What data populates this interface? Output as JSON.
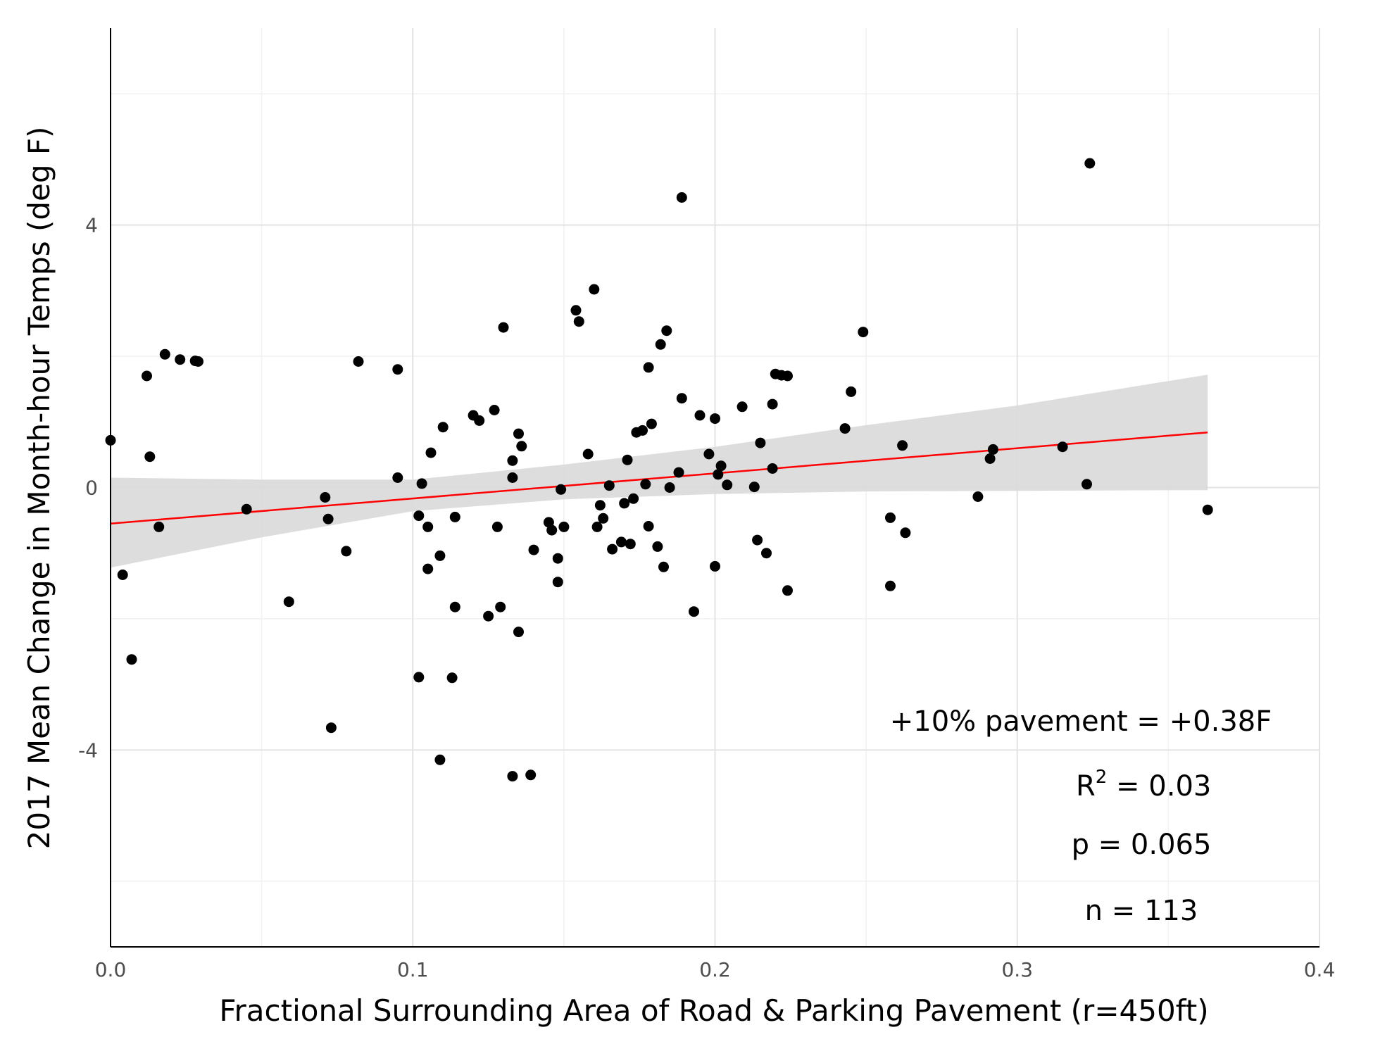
{
  "chart_data": {
    "type": "scatter",
    "title": "",
    "xlabel": "Fractional Surrounding Area of Road & Parking Pavement (r=450ft)",
    "ylabel": "2017 Mean Change in Month-hour Temps (deg F)",
    "xlim": [
      0.0,
      0.4
    ],
    "ylim": [
      -7,
      7
    ],
    "x_ticks": [
      0.0,
      0.1,
      0.2,
      0.3,
      0.4
    ],
    "x_tick_labels": [
      "0.0",
      "0.1",
      "0.2",
      "0.3",
      "0.4"
    ],
    "y_ticks": [
      -4,
      0,
      4
    ],
    "y_tick_labels": [
      "-4",
      "0",
      "4"
    ],
    "grid": true,
    "point_color": "#000000",
    "fit_line_color": "#ff0000",
    "confidence_band_color": "#d9d9d9",
    "fit_line": {
      "x": [
        0.0,
        0.363
      ],
      "y": [
        -0.55,
        0.84
      ]
    },
    "confidence_band": {
      "x": [
        0.0,
        0.05,
        0.1,
        0.15,
        0.2,
        0.25,
        0.3,
        0.363
      ],
      "upper": [
        0.15,
        0.12,
        0.12,
        0.35,
        0.62,
        0.95,
        1.25,
        1.72
      ],
      "lower": [
        -1.22,
        -0.76,
        -0.36,
        -0.18,
        -0.1,
        -0.06,
        -0.05,
        -0.04
      ]
    },
    "annotations": {
      "slope_text": "+10% pavement = +0.38F",
      "r2_prefix": "R",
      "r2_superscript": "2",
      "r2_suffix": " = 0.03",
      "p_text": "p = 0.065",
      "n_text": "n = 113"
    },
    "points": [
      [
        0.0,
        0.72
      ],
      [
        0.004,
        -1.33
      ],
      [
        0.007,
        -2.62
      ],
      [
        0.012,
        1.7
      ],
      [
        0.013,
        0.47
      ],
      [
        0.016,
        -0.6
      ],
      [
        0.018,
        2.03
      ],
      [
        0.023,
        1.95
      ],
      [
        0.028,
        1.93
      ],
      [
        0.029,
        1.92
      ],
      [
        0.045,
        -0.33
      ],
      [
        0.059,
        -1.74
      ],
      [
        0.071,
        -0.15
      ],
      [
        0.072,
        -0.48
      ],
      [
        0.073,
        -3.66
      ],
      [
        0.078,
        -0.97
      ],
      [
        0.082,
        1.92
      ],
      [
        0.095,
        1.8
      ],
      [
        0.095,
        0.15
      ],
      [
        0.102,
        -0.43
      ],
      [
        0.102,
        -2.89
      ],
      [
        0.103,
        0.06
      ],
      [
        0.105,
        -1.24
      ],
      [
        0.105,
        -0.6
      ],
      [
        0.106,
        0.53
      ],
      [
        0.109,
        -1.04
      ],
      [
        0.109,
        -4.15
      ],
      [
        0.11,
        0.92
      ],
      [
        0.113,
        -2.9
      ],
      [
        0.114,
        -1.82
      ],
      [
        0.114,
        -0.45
      ],
      [
        0.12,
        1.1
      ],
      [
        0.122,
        1.02
      ],
      [
        0.125,
        -1.96
      ],
      [
        0.127,
        1.18
      ],
      [
        0.128,
        -0.6
      ],
      [
        0.129,
        -1.82
      ],
      [
        0.13,
        2.44
      ],
      [
        0.133,
        0.41
      ],
      [
        0.133,
        0.15
      ],
      [
        0.133,
        -4.4
      ],
      [
        0.135,
        0.82
      ],
      [
        0.135,
        -2.2
      ],
      [
        0.136,
        0.63
      ],
      [
        0.139,
        -4.38
      ],
      [
        0.14,
        -0.95
      ],
      [
        0.145,
        -0.53
      ],
      [
        0.146,
        -0.65
      ],
      [
        0.148,
        -1.08
      ],
      [
        0.148,
        -1.44
      ],
      [
        0.149,
        -0.03
      ],
      [
        0.15,
        -0.6
      ],
      [
        0.154,
        2.7
      ],
      [
        0.155,
        2.53
      ],
      [
        0.158,
        0.51
      ],
      [
        0.16,
        3.02
      ],
      [
        0.161,
        -0.6
      ],
      [
        0.162,
        -0.27
      ],
      [
        0.163,
        -0.47
      ],
      [
        0.165,
        0.03
      ],
      [
        0.166,
        -0.94
      ],
      [
        0.169,
        -0.83
      ],
      [
        0.17,
        -0.24
      ],
      [
        0.171,
        0.42
      ],
      [
        0.172,
        -0.86
      ],
      [
        0.173,
        -0.17
      ],
      [
        0.174,
        0.84
      ],
      [
        0.176,
        0.87
      ],
      [
        0.177,
        0.05
      ],
      [
        0.178,
        -0.59
      ],
      [
        0.178,
        1.83
      ],
      [
        0.179,
        0.97
      ],
      [
        0.181,
        -0.9
      ],
      [
        0.182,
        2.18
      ],
      [
        0.183,
        -1.21
      ],
      [
        0.184,
        2.39
      ],
      [
        0.188,
        0.23
      ],
      [
        0.189,
        1.36
      ],
      [
        0.189,
        4.42
      ],
      [
        0.193,
        -1.89
      ],
      [
        0.195,
        1.1
      ],
      [
        0.198,
        0.51
      ],
      [
        0.2,
        1.05
      ],
      [
        0.2,
        -1.2
      ],
      [
        0.201,
        0.2
      ],
      [
        0.202,
        0.33
      ],
      [
        0.204,
        0.04
      ],
      [
        0.209,
        1.23
      ],
      [
        0.213,
        0.01
      ],
      [
        0.214,
        -0.8
      ],
      [
        0.215,
        0.68
      ],
      [
        0.217,
        -1.0
      ],
      [
        0.219,
        0.29
      ],
      [
        0.219,
        1.27
      ],
      [
        0.22,
        1.73
      ],
      [
        0.222,
        1.71
      ],
      [
        0.224,
        1.7
      ],
      [
        0.224,
        -1.57
      ],
      [
        0.243,
        0.9
      ],
      [
        0.245,
        1.46
      ],
      [
        0.249,
        2.37
      ],
      [
        0.258,
        -1.5
      ],
      [
        0.258,
        -0.46
      ],
      [
        0.262,
        0.64
      ],
      [
        0.263,
        -0.69
      ],
      [
        0.287,
        -0.14
      ],
      [
        0.291,
        0.44
      ],
      [
        0.292,
        0.58
      ],
      [
        0.315,
        0.62
      ],
      [
        0.323,
        0.05
      ],
      [
        0.324,
        4.94
      ],
      [
        0.363,
        -0.34
      ],
      [
        0.185,
        0.0
      ]
    ]
  }
}
